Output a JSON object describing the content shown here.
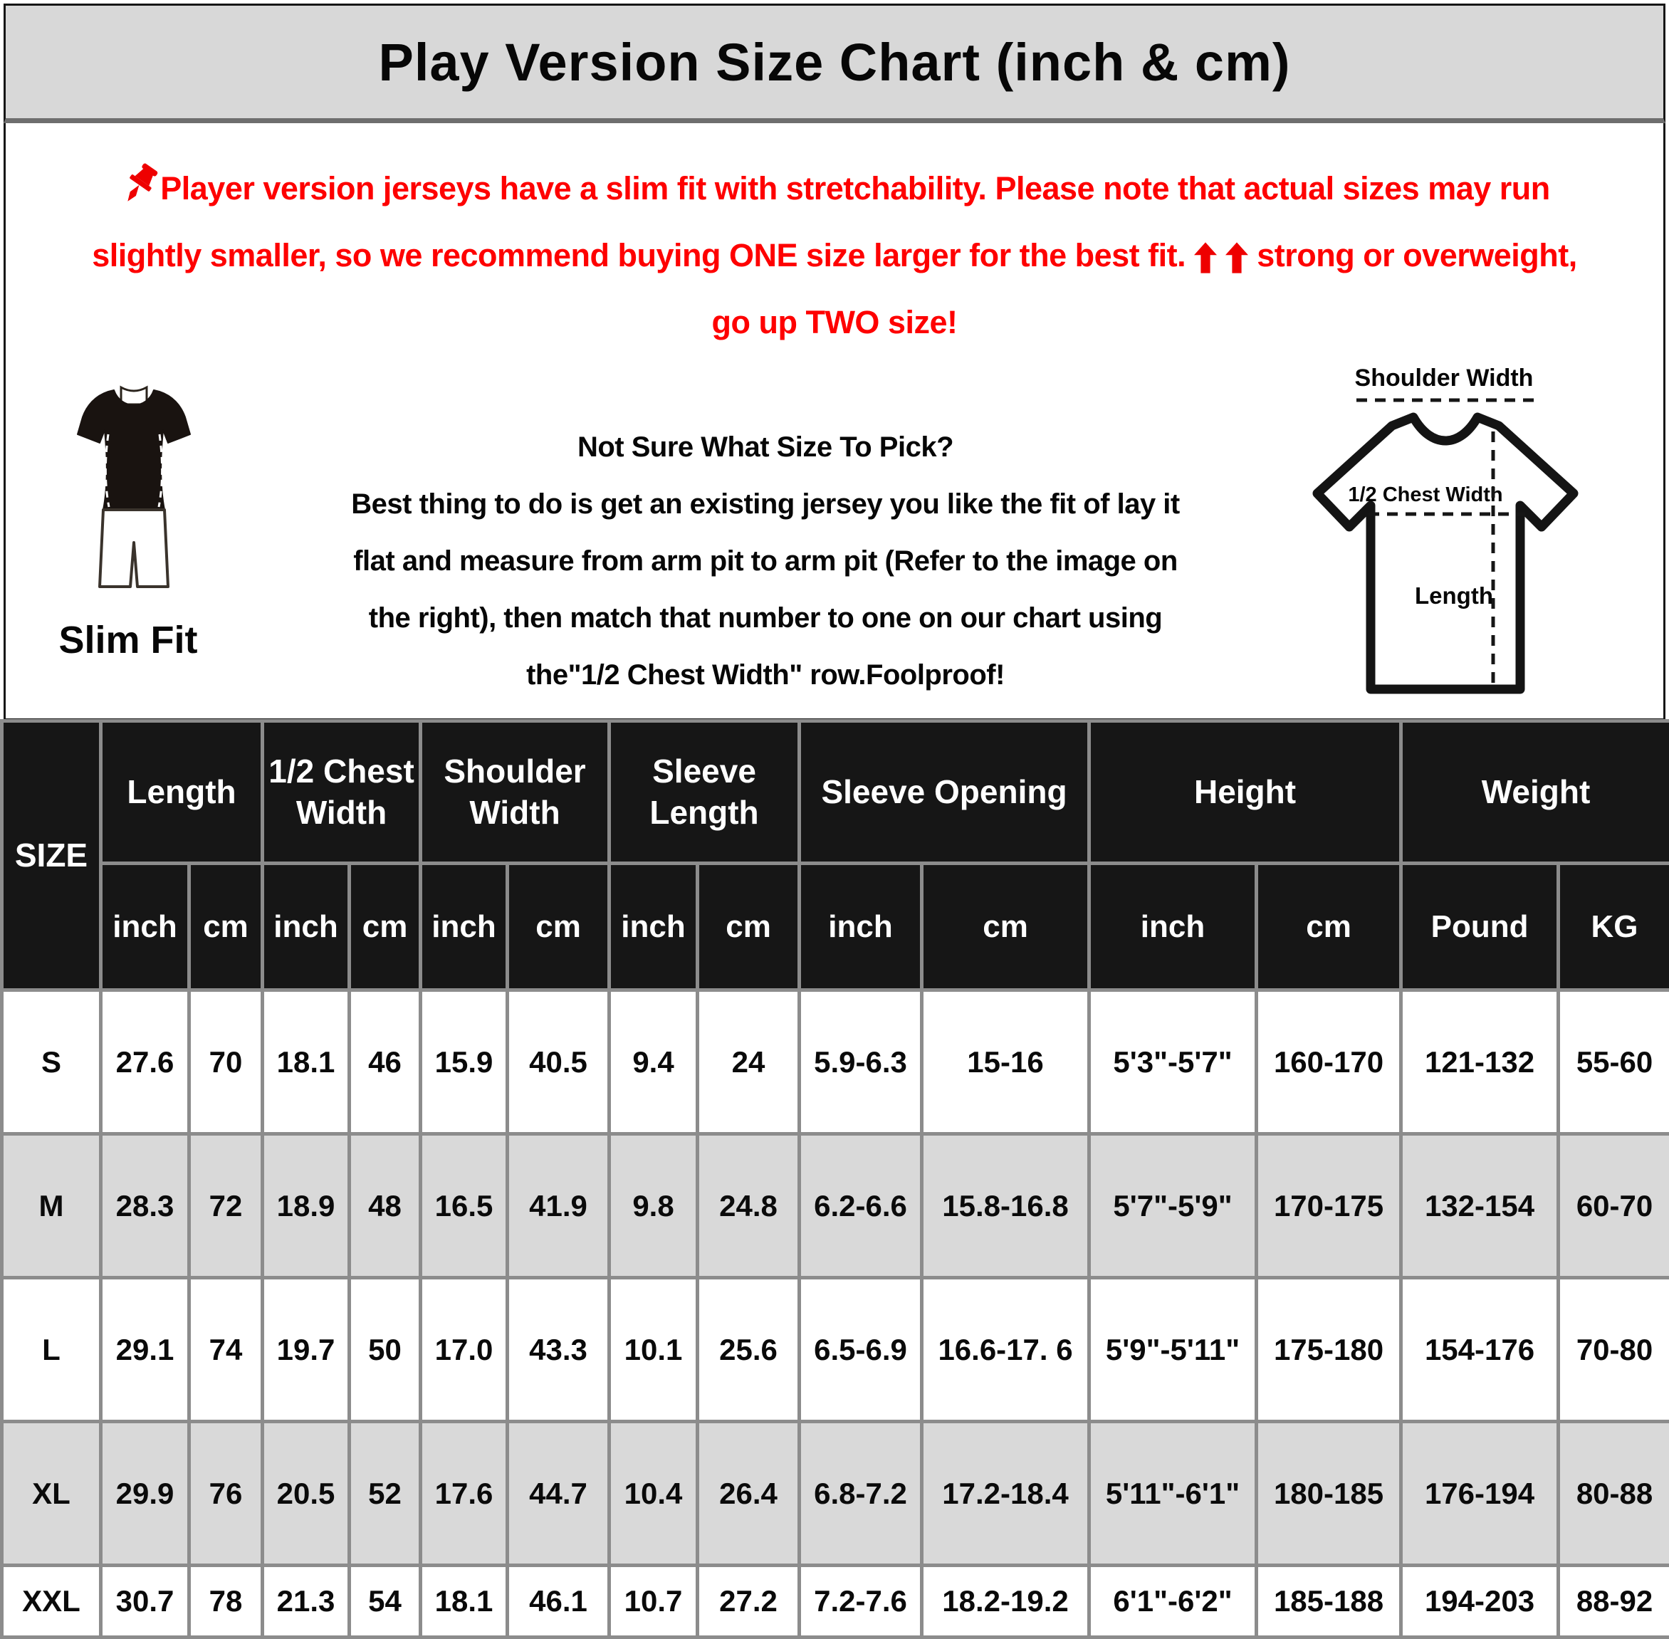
{
  "title": "Play Version Size Chart (inch & cm)",
  "colors": {
    "notice_red": "#fe0000",
    "titlebar_bg": "#d8d8d8",
    "table_header_bg": "#161616",
    "row_alt_bg": "#d9d9d9",
    "grid_gray": "#8c8c8c"
  },
  "notice": {
    "line1": "Player version jerseys have a slim fit with stretchability. Please note that actual sizes may run",
    "line2_before_arrows": "slightly smaller, so we recommend buying ONE size larger for the best fit.",
    "line2_after_arrows": "strong or overweight,",
    "line3": "go up TWO size!"
  },
  "slim_fit": {
    "label": "Slim Fit"
  },
  "guide": {
    "heading": "Not Sure What Size To Pick?",
    "line1": "Best thing to do is get an existing jersey you like the fit of lay it",
    "line2": "flat and measure from arm pit to arm pit (Refer to the image on",
    "line3": "the right), then match that number to one on our chart using",
    "line4": "the\"1/2 Chest Width\" row.Foolproof!"
  },
  "diagram": {
    "shoulder_label": "Shoulder Width",
    "chest_label": "1/2 Chest Width",
    "length_label": "Length"
  },
  "table": {
    "size_header": "SIZE",
    "groups": [
      {
        "label": "Length"
      },
      {
        "label": "1/2 Chest Width"
      },
      {
        "label": "Shoulder Width"
      },
      {
        "label": "Sleeve Length"
      },
      {
        "label": "Sleeve Opening"
      },
      {
        "label": "Height"
      },
      {
        "label": "Weight"
      }
    ],
    "subheaders": [
      "inch",
      "cm",
      "inch",
      "cm",
      "inch",
      "cm",
      "inch",
      "cm",
      "inch",
      "cm",
      "inch",
      "cm",
      "Pound",
      "KG"
    ],
    "rows": [
      {
        "size": "S",
        "values": [
          "27.6",
          "70",
          "18.1",
          "46",
          "15.9",
          "40.5",
          "9.4",
          "24",
          "5.9-6.3",
          "15-16",
          "5'3\"-5'7\"",
          "160-170",
          "121-132",
          "55-60"
        ]
      },
      {
        "size": "M",
        "values": [
          "28.3",
          "72",
          "18.9",
          "48",
          "16.5",
          "41.9",
          "9.8",
          "24.8",
          "6.2-6.6",
          "15.8-16.8",
          "5'7\"-5'9\"",
          "170-175",
          "132-154",
          "60-70"
        ]
      },
      {
        "size": "L",
        "values": [
          "29.1",
          "74",
          "19.7",
          "50",
          "17.0",
          "43.3",
          "10.1",
          "25.6",
          "6.5-6.9",
          "16.6-17. 6",
          "5'9\"-5'11\"",
          "175-180",
          "154-176",
          "70-80"
        ]
      },
      {
        "size": "XL",
        "values": [
          "29.9",
          "76",
          "20.5",
          "52",
          "17.6",
          "44.7",
          "10.4",
          "26.4",
          "6.8-7.2",
          "17.2-18.4",
          "5'11\"-6'1\"",
          "180-185",
          "176-194",
          "80-88"
        ]
      },
      {
        "size": "XXL",
        "values": [
          "30.7",
          "78",
          "21.3",
          "54",
          "18.1",
          "46.1",
          "10.7",
          "27.2",
          "7.2-7.6",
          "18.2-19.2",
          "6'1\"-6'2\"",
          "185-188",
          "194-203",
          "88-92"
        ]
      }
    ]
  }
}
